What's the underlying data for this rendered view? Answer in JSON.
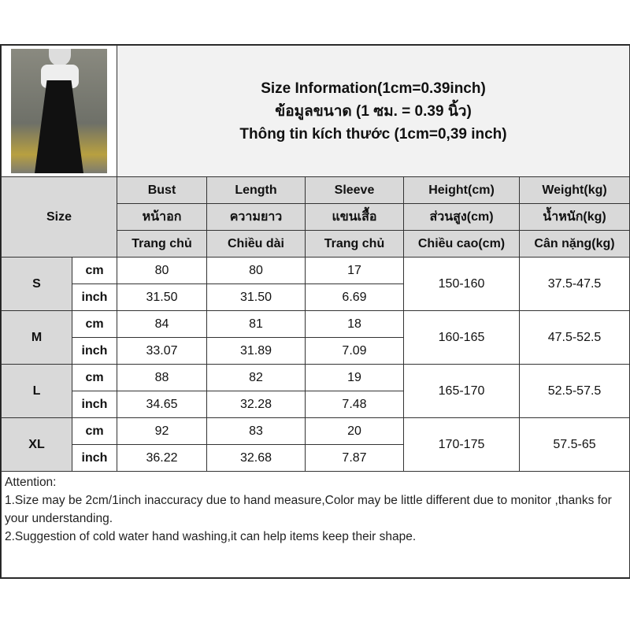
{
  "title_lines": [
    "Size Information(1cm=0.39inch)",
    "ข้อมูลขนาด (1 ซม. = 0.39 นิ้ว)",
    "Thông tin kích thước (1cm=0,39 inch)"
  ],
  "size_label": "Size",
  "headers": [
    [
      "Bust",
      "Length",
      "Sleeve",
      "Height(cm)",
      "Weight(kg)"
    ],
    [
      "หน้าอก",
      "ความยาว",
      "แขนเสื้อ",
      "ส่วนสูง(cm)",
      "น้ำหนัก(kg)"
    ],
    [
      "Trang chủ",
      "Chiều dài",
      "Trang chủ",
      "Chiều cao(cm)",
      "Cân nặng(kg)"
    ]
  ],
  "sizes": [
    {
      "size": "S",
      "cm": {
        "unit": "cm",
        "bust": "80",
        "length": "80",
        "sleeve": "17"
      },
      "inch": {
        "unit": "inch",
        "bust": "31.50",
        "length": "31.50",
        "sleeve": "6.69"
      },
      "height": "150-160",
      "weight": "37.5-47.5"
    },
    {
      "size": "M",
      "cm": {
        "unit": "cm",
        "bust": "84",
        "length": "81",
        "sleeve": "18"
      },
      "inch": {
        "unit": "inch",
        "bust": "33.07",
        "length": "31.89",
        "sleeve": "7.09"
      },
      "height": "160-165",
      "weight": "47.5-52.5"
    },
    {
      "size": "L",
      "cm": {
        "unit": "cm",
        "bust": "88",
        "length": "82",
        "sleeve": "19"
      },
      "inch": {
        "unit": "inch",
        "bust": "34.65",
        "length": "32.28",
        "sleeve": "7.48"
      },
      "height": "165-170",
      "weight": "52.5-57.5"
    },
    {
      "size": "XL",
      "cm": {
        "unit": "cm",
        "bust": "92",
        "length": "83",
        "sleeve": "20"
      },
      "inch": {
        "unit": "inch",
        "bust": "36.22",
        "length": "32.68",
        "sleeve": "7.87"
      },
      "height": "170-175",
      "weight": "57.5-65"
    }
  ],
  "attention": {
    "heading": "Attention:",
    "lines": [
      "1.Size may be 2cm/1inch inaccuracy due to hand measure,Color may be little different due to monitor ,thanks for your understanding.",
      "2.Suggestion of cold water hand washing,it can help items keep their shape."
    ]
  }
}
